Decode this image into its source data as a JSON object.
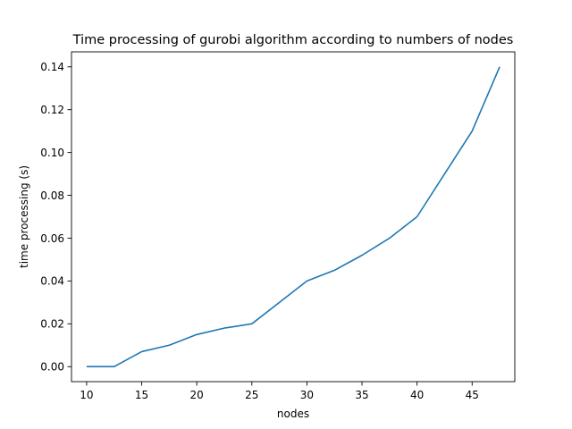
{
  "chart_data": {
    "type": "line",
    "title": "Time processing of gurobi algorithm according to numbers of nodes",
    "xlabel": "nodes",
    "ylabel": "time processing (s)",
    "xlim": [
      8.625,
      48.875
    ],
    "ylim": [
      -0.007,
      0.147
    ],
    "xticks": [
      10,
      15,
      20,
      25,
      30,
      35,
      40,
      45
    ],
    "xtick_labels": [
      "10",
      "15",
      "20",
      "25",
      "30",
      "35",
      "40",
      "45"
    ],
    "yticks": [
      0.0,
      0.02,
      0.04,
      0.06,
      0.08,
      0.1,
      0.12,
      0.14
    ],
    "ytick_labels": [
      "0.00",
      "0.02",
      "0.04",
      "0.06",
      "0.08",
      "0.10",
      "0.12",
      "0.14"
    ],
    "grid": false,
    "series": [
      {
        "color": "#1f77b4",
        "x": [
          10,
          12.5,
          15,
          17.5,
          20,
          22.5,
          25,
          27.5,
          30,
          32.5,
          35,
          37.5,
          40,
          42.5,
          45,
          47.5
        ],
        "y": [
          0.0,
          0.0,
          0.007,
          0.01,
          0.015,
          0.018,
          0.02,
          0.03,
          0.04,
          0.045,
          0.052,
          0.06,
          0.07,
          0.09,
          0.11,
          0.14
        ]
      }
    ]
  }
}
